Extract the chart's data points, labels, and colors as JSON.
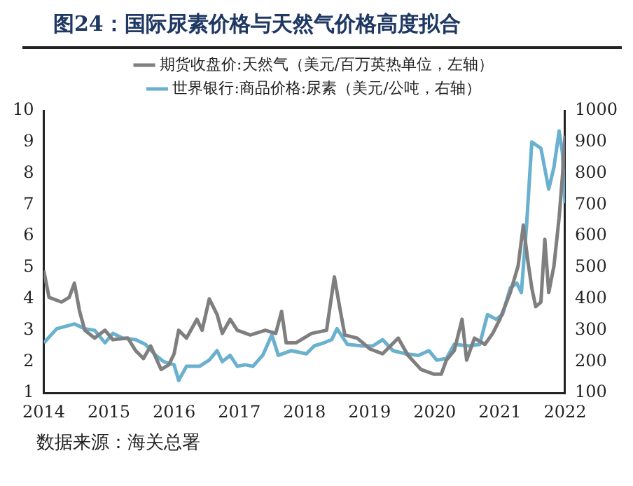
{
  "chart_data": {
    "type": "line",
    "title": "图24：国际尿素价格与天然气价格高度拟合",
    "annotations": [
      "数据来源：海关总署"
    ],
    "xlim": [
      2014,
      2022
    ],
    "xticks": [
      2014,
      2015,
      2016,
      2017,
      2018,
      2019,
      2020,
      2021,
      2022
    ],
    "ylim": [
      1,
      10
    ],
    "yticks": [
      1,
      2,
      3,
      4,
      5,
      6,
      7,
      8,
      9,
      10
    ],
    "y2lim": [
      100,
      1000
    ],
    "y2ticks": [
      100,
      200,
      300,
      400,
      500,
      600,
      700,
      800,
      900,
      1000
    ],
    "grid": false,
    "legend": "top",
    "marker": "none",
    "line_style": "solid",
    "series": [
      {
        "name": "期货收盘价:天然气（美元/百万英热单位，左轴）",
        "color": "#7f7f7f",
        "axis": "y",
        "x": [
          2014.0,
          2014.08,
          2014.27,
          2014.39,
          2014.47,
          2014.55,
          2014.63,
          2014.78,
          2014.94,
          2015.06,
          2015.29,
          2015.41,
          2015.53,
          2015.64,
          2015.8,
          2015.92,
          2016.0,
          2016.07,
          2016.19,
          2016.35,
          2016.43,
          2016.54,
          2016.66,
          2016.74,
          2016.86,
          2016.97,
          2017.17,
          2017.4,
          2017.56,
          2017.65,
          2017.72,
          2017.87,
          2018.11,
          2018.34,
          2018.46,
          2018.54,
          2018.62,
          2018.81,
          2019.01,
          2019.2,
          2019.44,
          2019.59,
          2019.79,
          2019.99,
          2020.1,
          2020.18,
          2020.3,
          2020.42,
          2020.49,
          2020.61,
          2020.77,
          2020.89,
          2021.0,
          2021.16,
          2021.28,
          2021.36,
          2021.43,
          2021.49,
          2021.55,
          2021.63,
          2021.69,
          2021.75,
          2021.83,
          2021.91,
          2021.96,
          2022.0
        ],
        "values": [
          4.9,
          4.05,
          3.9,
          4.05,
          4.5,
          3.6,
          3.0,
          2.75,
          3.0,
          2.7,
          2.75,
          2.35,
          2.1,
          2.5,
          1.75,
          1.9,
          2.25,
          3.0,
          2.75,
          3.35,
          3.0,
          4.0,
          3.5,
          2.9,
          3.35,
          3.0,
          2.85,
          3.0,
          2.9,
          3.6,
          2.6,
          2.6,
          2.9,
          3.0,
          4.7,
          3.75,
          2.85,
          2.75,
          2.4,
          2.25,
          2.75,
          2.2,
          1.75,
          1.6,
          1.6,
          2.05,
          2.35,
          3.35,
          2.05,
          2.75,
          2.55,
          2.9,
          3.35,
          4.2,
          5.05,
          6.35,
          5.2,
          4.35,
          3.75,
          3.9,
          5.9,
          4.2,
          5.05,
          6.6,
          7.9,
          9.2
        ]
      },
      {
        "name": "世界银行:商品价格:尿素（美元/公吨，右轴）",
        "color": "#6ab0cf",
        "axis": "y2",
        "x": [
          2014.0,
          2014.2,
          2014.47,
          2014.63,
          2014.78,
          2014.94,
          2015.06,
          2015.21,
          2015.41,
          2015.56,
          2015.72,
          2015.84,
          2016.0,
          2016.07,
          2016.19,
          2016.39,
          2016.54,
          2016.66,
          2016.74,
          2016.86,
          2016.97,
          2017.09,
          2017.21,
          2017.36,
          2017.5,
          2017.6,
          2017.8,
          2018.03,
          2018.15,
          2018.3,
          2018.42,
          2018.5,
          2018.66,
          2018.89,
          2019.05,
          2019.2,
          2019.36,
          2019.55,
          2019.75,
          2019.91,
          2020.03,
          2020.18,
          2020.3,
          2020.53,
          2020.69,
          2020.81,
          2020.94,
          2021.04,
          2021.16,
          2021.26,
          2021.33,
          2021.41,
          2021.49,
          2021.63,
          2021.75,
          2021.83,
          2021.91,
          2021.96,
          2022.0
        ],
        "values": [
          260,
          305,
          320,
          305,
          300,
          260,
          290,
          275,
          270,
          255,
          220,
          200,
          190,
          140,
          185,
          185,
          205,
          235,
          200,
          220,
          185,
          190,
          185,
          220,
          285,
          220,
          235,
          225,
          250,
          260,
          270,
          305,
          255,
          250,
          250,
          270,
          235,
          225,
          220,
          235,
          205,
          210,
          255,
          250,
          255,
          350,
          335,
          350,
          435,
          450,
          420,
          635,
          900,
          880,
          750,
          820,
          935,
          865,
          705
        ]
      }
    ]
  }
}
